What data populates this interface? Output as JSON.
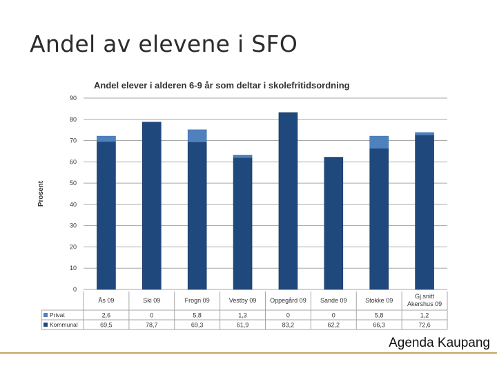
{
  "slide": {
    "title": "Andel av elevene i SFO",
    "footer": "Agenda Kaupang"
  },
  "colors": {
    "kommunal": "#1f497d",
    "privat": "#4f81bd",
    "grid": "#a6a6a6",
    "axis_text": "#333333"
  },
  "chart_data": {
    "type": "bar",
    "stacked": true,
    "title": "Andel elever i alderen 6-9 år som deltar i skolefritidsordning",
    "xlabel": "",
    "ylabel": "Prosent",
    "ylim": [
      0,
      90
    ],
    "yticks": [
      "0",
      "10",
      "20",
      "30",
      "40",
      "50",
      "60",
      "70",
      "80",
      "90"
    ],
    "grid": true,
    "categories": [
      "Ås 09",
      "Ski 09",
      "Frogn 09",
      "Vestby 09",
      "Oppegård 09",
      "Sande 09",
      "Stokke 09",
      "Gj.snitt Akershus 09"
    ],
    "series": [
      {
        "name": "Kommunal",
        "values": [
          69.5,
          78.7,
          69.3,
          61.9,
          83.2,
          62.2,
          66.3,
          72.6
        ],
        "labels": [
          "69,5",
          "78,7",
          "69,3",
          "61,9",
          "83,2",
          "62,2",
          "66,3",
          "72,6"
        ]
      },
      {
        "name": "Privat",
        "values": [
          2.6,
          0,
          5.8,
          1.3,
          0,
          0,
          5.8,
          1.2
        ],
        "labels": [
          "2,6",
          "0",
          "5,8",
          "1,3",
          "0",
          "0",
          "5,8",
          "1,2"
        ]
      }
    ]
  }
}
